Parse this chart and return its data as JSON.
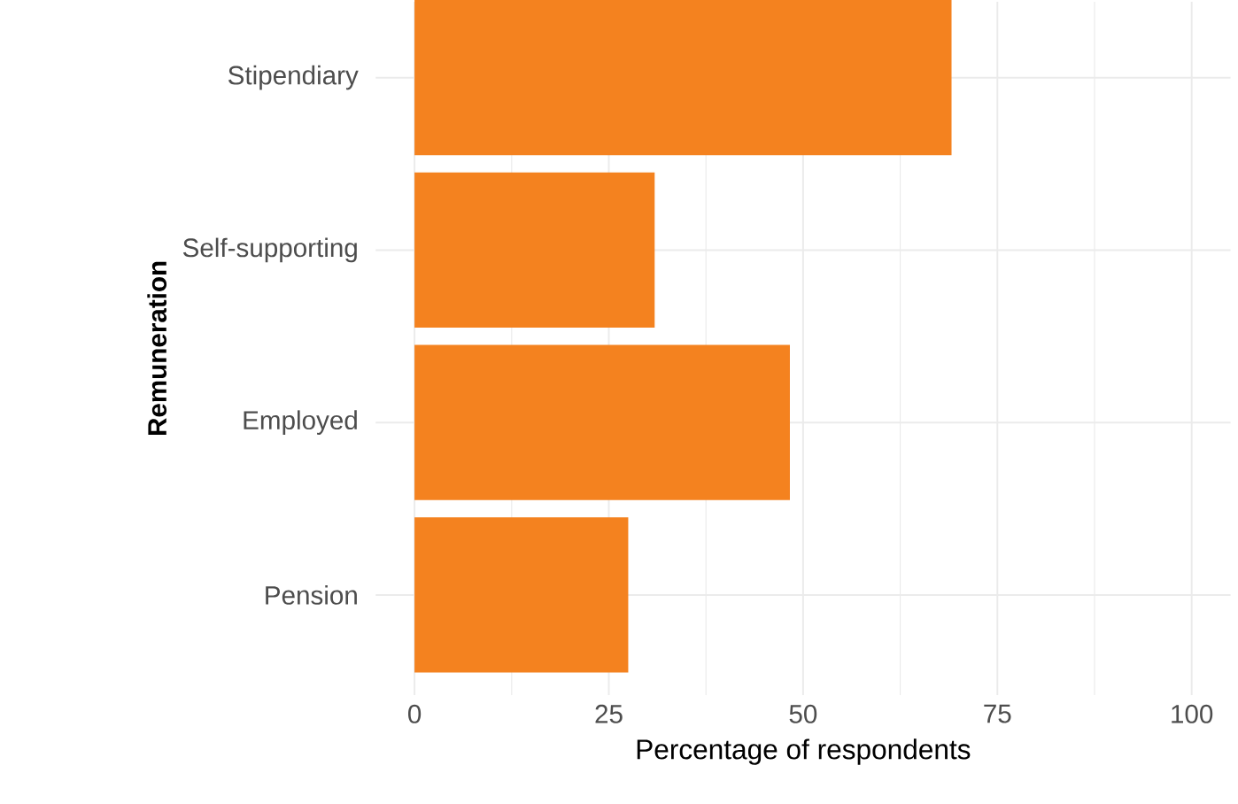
{
  "chart_data": {
    "type": "bar",
    "orientation": "horizontal",
    "xlabel": "Percentage of respondents",
    "ylabel": "Remuneration",
    "categories": [
      "Stipendiary",
      "Self-supporting",
      "Employed",
      "Pension"
    ],
    "values": [
      69.1,
      30.9,
      48.3,
      27.5
    ],
    "color": "#f4821f",
    "xlim": [
      -5,
      105
    ],
    "xticks": [
      0,
      25,
      50,
      75,
      100
    ],
    "grid": true
  }
}
